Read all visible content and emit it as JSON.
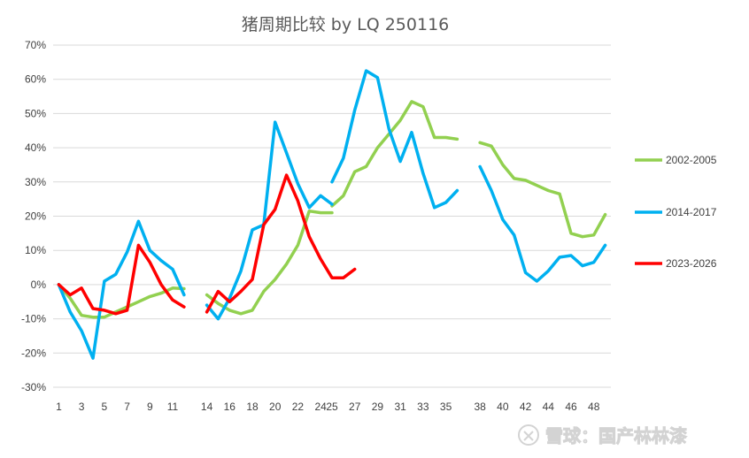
{
  "chart_data": {
    "type": "line",
    "title": "猪周期比较 by LQ 250116",
    "xlabel": "",
    "ylabel": "",
    "ylim": [
      -30,
      70
    ],
    "yticks": [
      "70%",
      "60%",
      "50%",
      "40%",
      "30%",
      "20%",
      "10%",
      "0%",
      "-10%",
      "-20%",
      "-30%"
    ],
    "yticks_values": [
      70,
      60,
      50,
      40,
      30,
      20,
      10,
      0,
      -10,
      -20,
      -30
    ],
    "x_range": [
      1,
      48
    ],
    "xticks": [
      "1",
      "3",
      "5",
      "7",
      "9",
      "11",
      "14",
      "16",
      "18",
      "20",
      "22",
      "24",
      "25",
      "27",
      "29",
      "31",
      "33",
      "35",
      "38",
      "40",
      "42",
      "44",
      "46",
      "48"
    ],
    "xticks_values": [
      1,
      3,
      5,
      7,
      9,
      11,
      14,
      16,
      18,
      20,
      22,
      24,
      25,
      27,
      29,
      31,
      33,
      35,
      38,
      40,
      42,
      44,
      46,
      48
    ],
    "grid": true,
    "legend_position": "right",
    "series": [
      {
        "name": "2002-2005",
        "color": "#92d050",
        "segments": [
          [
            [
              1,
              0
            ],
            [
              2,
              -4
            ],
            [
              3,
              -9
            ],
            [
              4,
              -9.5
            ],
            [
              5,
              -9.5
            ],
            [
              6,
              -8
            ],
            [
              7,
              -6.5
            ],
            [
              8,
              -5
            ],
            [
              9,
              -3.5
            ],
            [
              10,
              -2.5
            ],
            [
              11,
              -1
            ],
            [
              12,
              -1.2
            ]
          ],
          [
            [
              14,
              -3
            ],
            [
              15,
              -5.5
            ],
            [
              16,
              -7.5
            ],
            [
              17,
              -8.5
            ],
            [
              18,
              -7.5
            ],
            [
              19,
              -2
            ],
            [
              20,
              1.5
            ],
            [
              21,
              6
            ],
            [
              22,
              11.5
            ],
            [
              23,
              21.5
            ],
            [
              24,
              21
            ],
            [
              25,
              21
            ]
          ],
          [
            [
              25,
              23
            ],
            [
              26,
              26
            ],
            [
              27,
              33
            ],
            [
              28,
              34.5
            ],
            [
              29,
              40
            ],
            [
              30,
              44
            ],
            [
              31,
              48
            ],
            [
              32,
              53.5
            ],
            [
              33,
              52
            ],
            [
              34,
              43
            ],
            [
              35,
              43
            ],
            [
              36,
              42.5
            ]
          ],
          [
            [
              38,
              41.5
            ],
            [
              39,
              40.5
            ],
            [
              40,
              35
            ],
            [
              41,
              31
            ],
            [
              42,
              30.5
            ],
            [
              43,
              29
            ],
            [
              44,
              27.5
            ],
            [
              45,
              26.5
            ],
            [
              46,
              15
            ],
            [
              47,
              14
            ],
            [
              48,
              14.5
            ],
            [
              49,
              20.5
            ]
          ]
        ]
      },
      {
        "name": "2014-2017",
        "color": "#00b0f0",
        "segments": [
          [
            [
              1,
              0
            ],
            [
              2,
              -8
            ],
            [
              3,
              -13.5
            ],
            [
              4,
              -21.5
            ],
            [
              5,
              1
            ],
            [
              6,
              3
            ],
            [
              7,
              9.5
            ],
            [
              8,
              18.5
            ],
            [
              9,
              10
            ],
            [
              10,
              7
            ],
            [
              11,
              4.5
            ],
            [
              12,
              -3
            ]
          ],
          [
            [
              14,
              -6
            ],
            [
              15,
              -10
            ],
            [
              16,
              -4
            ],
            [
              17,
              4
            ],
            [
              18,
              16
            ],
            [
              19,
              17.5
            ],
            [
              20,
              47.5
            ],
            [
              21,
              38.5
            ],
            [
              22,
              29.5
            ],
            [
              23,
              22.5
            ],
            [
              24,
              26
            ],
            [
              25,
              23.5
            ]
          ],
          [
            [
              25,
              30
            ],
            [
              26,
              37
            ],
            [
              27,
              51
            ],
            [
              28,
              62.5
            ],
            [
              29,
              60.5
            ],
            [
              30,
              45.5
            ],
            [
              31,
              36
            ],
            [
              32,
              44.5
            ],
            [
              33,
              32.5
            ],
            [
              34,
              22.5
            ],
            [
              35,
              24
            ],
            [
              36,
              27.5
            ]
          ],
          [
            [
              38,
              34.5
            ],
            [
              39,
              27.5
            ],
            [
              40,
              19
            ],
            [
              41,
              14.5
            ],
            [
              42,
              3.5
            ],
            [
              43,
              1
            ],
            [
              44,
              4
            ],
            [
              45,
              8
            ],
            [
              46,
              8.5
            ],
            [
              47,
              5.5
            ],
            [
              48,
              6.5
            ],
            [
              49,
              11.5
            ]
          ]
        ]
      },
      {
        "name": "2023-2026",
        "color": "#ff0000",
        "segments": [
          [
            [
              1,
              0
            ],
            [
              2,
              -3
            ],
            [
              3,
              -1
            ],
            [
              4,
              -7
            ],
            [
              5,
              -7.5
            ],
            [
              6,
              -8.5
            ],
            [
              7,
              -7.5
            ],
            [
              8,
              11.5
            ],
            [
              9,
              6.5
            ],
            [
              10,
              0
            ],
            [
              11,
              -4.5
            ],
            [
              12,
              -6.5
            ]
          ],
          [
            [
              14,
              -8
            ],
            [
              15,
              -2
            ],
            [
              16,
              -5
            ],
            [
              17,
              -2
            ],
            [
              18,
              1.5
            ],
            [
              19,
              17.5
            ],
            [
              20,
              22
            ],
            [
              21,
              32
            ],
            [
              22,
              24.5
            ],
            [
              23,
              14
            ],
            [
              24,
              7.5
            ],
            [
              25,
              2
            ],
            [
              26,
              2
            ],
            [
              27,
              4.5
            ]
          ]
        ]
      }
    ]
  },
  "watermark": {
    "text": "雪球：国产林林漆"
  }
}
